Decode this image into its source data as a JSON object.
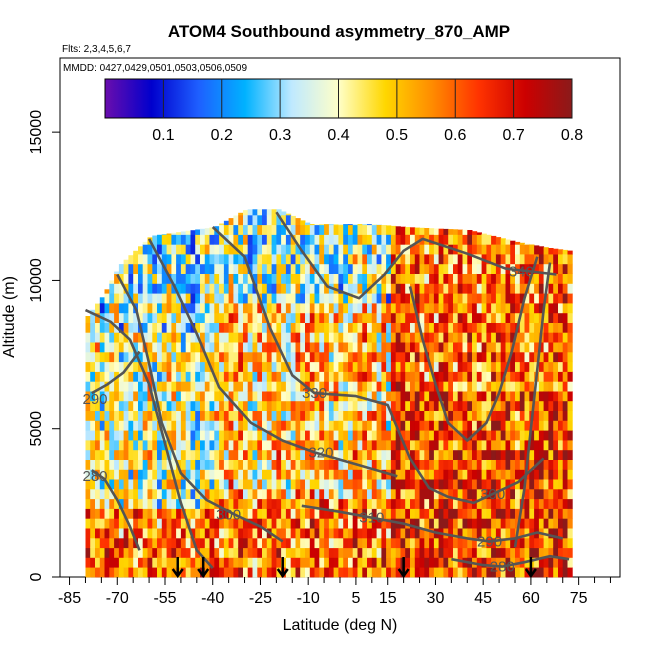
{
  "chart_data": {
    "type": "heatmap",
    "title": "ATOM4 Southbound asymmetry_870_AMP",
    "annotations": {
      "flights": "Flts: 2,3,4,5,6,7",
      "dates": "MMDD: 0427,0429,0501,0503,0506,0509"
    },
    "xlabel": "Latitude (deg N)",
    "ylabel": "Altitude (m)",
    "xlim": [
      -88,
      88
    ],
    "ylim": [
      0,
      17500
    ],
    "x_ticks": [
      -85,
      -70,
      -55,
      -40,
      -25,
      -10,
      5,
      15,
      30,
      45,
      60,
      75
    ],
    "x_minor_ticks": [
      -80,
      -75,
      -65,
      -60,
      -50,
      -45,
      -35,
      -30,
      -20,
      -15,
      -5,
      0,
      10,
      20,
      25,
      35,
      40,
      50,
      55,
      65,
      70,
      80,
      85
    ],
    "y_ticks": [
      0,
      5000,
      10000,
      15000
    ],
    "colorbar": {
      "min": 0.0,
      "max": 0.8,
      "ticks": [
        0.1,
        0.2,
        0.3,
        0.4,
        0.5,
        0.6,
        0.7,
        0.8
      ],
      "colors": [
        "#6a0dad",
        "#0000cd",
        "#1e5fff",
        "#00b2ff",
        "#bfe9ff",
        "#ffffc8",
        "#ffd700",
        "#ff8c00",
        "#ff3300",
        "#cc0000",
        "#8b1a1a"
      ]
    },
    "theta_contour_labels": [
      {
        "label": "340",
        "lat": 57,
        "alt": 10300
      },
      {
        "label": "330",
        "lat": -8,
        "alt": 6200
      },
      {
        "label": "320",
        "lat": -6,
        "alt": 4200
      },
      {
        "label": "310",
        "lat": 10,
        "alt": 2000
      },
      {
        "label": "300",
        "lat": -35,
        "alt": 2100
      },
      {
        "label": "300",
        "lat": 48,
        "alt": 2800
      },
      {
        "label": "290",
        "lat": -77,
        "alt": 6000
      },
      {
        "label": "290",
        "lat": 47,
        "alt": 1200
      },
      {
        "label": "280",
        "lat": -77,
        "alt": 3400
      },
      {
        "label": "280",
        "lat": 51,
        "alt": 350
      }
    ],
    "profile_markers_lat": [
      -51,
      -43,
      -18,
      20,
      60
    ],
    "domain_envelope": [
      [
        -80,
        8800
      ],
      [
        -75,
        9500
      ],
      [
        -70,
        10500
      ],
      [
        -65,
        11000
      ],
      [
        -60,
        11500
      ],
      [
        -40,
        11800
      ],
      [
        -30,
        12400
      ],
      [
        -20,
        12400
      ],
      [
        -10,
        11900
      ],
      [
        10,
        11900
      ],
      [
        20,
        11800
      ],
      [
        40,
        11700
      ],
      [
        55,
        11300
      ],
      [
        65,
        11100
      ],
      [
        72,
        11000
      ]
    ]
  }
}
